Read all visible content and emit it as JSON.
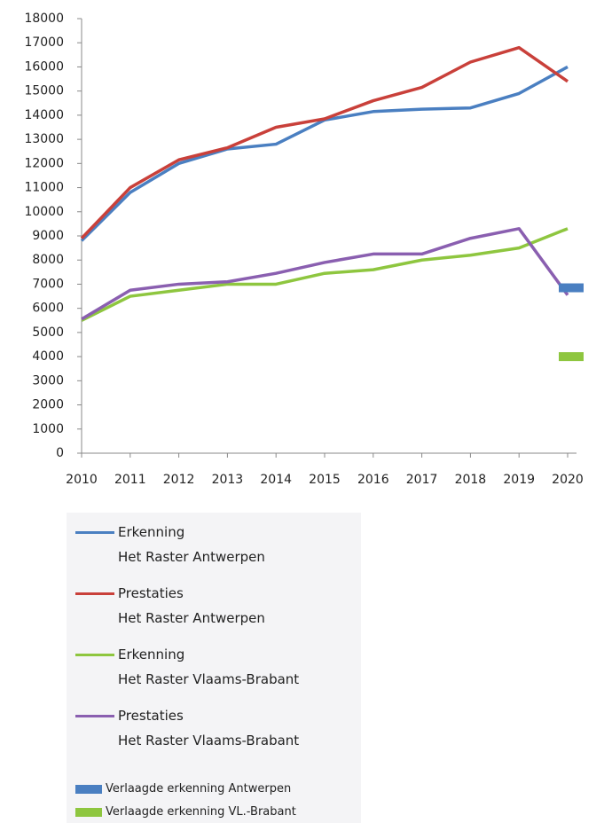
{
  "chart_data": {
    "type": "line",
    "categories": [
      "2010",
      "2011",
      "2012",
      "2013",
      "2014",
      "2015",
      "2016",
      "2017",
      "2018",
      "2019",
      "2020"
    ],
    "series": [
      {
        "name": "Erkenning\nHet Raster Antwerpen",
        "color": "#4a7fc1",
        "style": "line",
        "values": [
          8800,
          10800,
          12000,
          12600,
          12800,
          13800,
          14150,
          14250,
          14300,
          14900,
          16000
        ]
      },
      {
        "name": "Prestaties\nHet Raster Antwerpen",
        "color": "#c9403a",
        "style": "line",
        "values": [
          8900,
          11000,
          12150,
          12650,
          13500,
          13850,
          14600,
          15150,
          16200,
          16800,
          15400
        ]
      },
      {
        "name": "Erkenning\nHet Raster Vlaams-Brabant",
        "color": "#8ec63f",
        "style": "line",
        "values": [
          5500,
          6500,
          6750,
          7000,
          7000,
          7450,
          7600,
          8000,
          8200,
          8500,
          9300
        ]
      },
      {
        "name": "Prestaties\nHet Raster Vlaams-Brabant",
        "color": "#8a5fb0",
        "style": "line",
        "values": [
          5550,
          6750,
          7000,
          7100,
          7450,
          7900,
          8250,
          8250,
          8900,
          9300,
          6550
        ]
      },
      {
        "name": "Verlaagde erkenning Antwerpen",
        "color": "#4a7fc1",
        "style": "marker",
        "values": [
          null,
          null,
          null,
          null,
          null,
          null,
          null,
          null,
          null,
          null,
          6850
        ]
      },
      {
        "name": "Verlaagde erkenning VL.-Brabant",
        "color": "#8ec63f",
        "style": "marker",
        "values": [
          null,
          null,
          null,
          null,
          null,
          null,
          null,
          null,
          null,
          null,
          4000
        ]
      }
    ],
    "ylim": [
      0,
      18000
    ],
    "yticks": [
      0,
      1000,
      2000,
      3000,
      4000,
      5000,
      6000,
      7000,
      8000,
      9000,
      10000,
      11000,
      12000,
      13000,
      14000,
      15000,
      16000,
      17000,
      18000
    ],
    "grid": false
  }
}
